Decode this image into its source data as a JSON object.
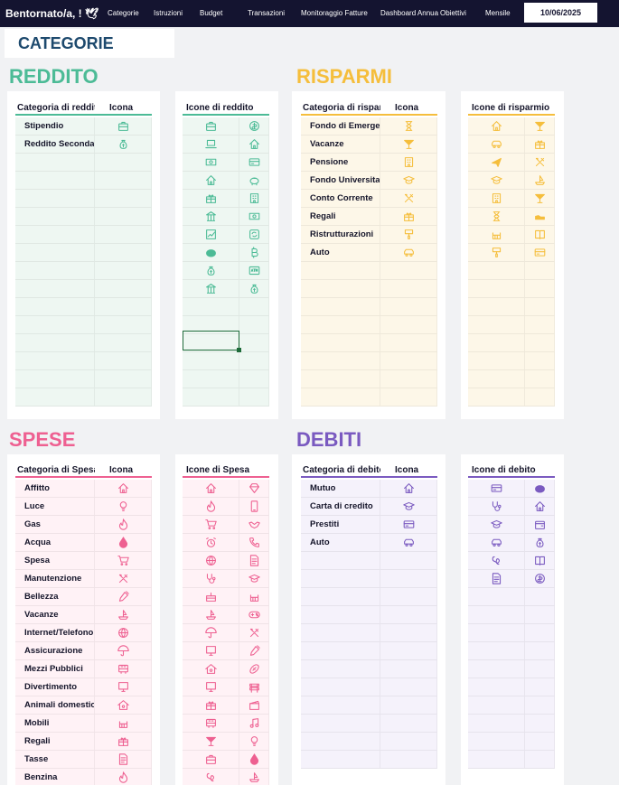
{
  "topbar": {
    "brand": "Bentornato/a, !",
    "nav": [
      "Categorie",
      "Istruzioni",
      "Budget",
      "Transazioni",
      "Monitoraggio Fatture",
      "Dashboard Annua",
      "Obiettivi",
      "Mensile"
    ],
    "date": "10/06/2025"
  },
  "page_title": "CATEGORIE",
  "colors": {
    "reddito": "#4cbb96",
    "risparmi": "#f5be3c",
    "spese": "#ee6091",
    "debiti": "#7a5ac0"
  },
  "reddito": {
    "title": "REDDITO",
    "cat_header": "Categoria di reddito",
    "icon_header": "Icona",
    "gallery_header": "Icone di reddito",
    "categories": [
      {
        "name": "Stipendio",
        "icon": "briefcase"
      },
      {
        "name": "Reddito Secondario",
        "icon": "money-bag"
      }
    ],
    "gallery": [
      [
        "briefcase",
        "coins"
      ],
      [
        "laptop",
        "house"
      ],
      [
        "cash",
        "card"
      ],
      [
        "house",
        "piggy"
      ],
      [
        "gift",
        "building"
      ],
      [
        "bank",
        "cash"
      ],
      [
        "chart",
        "refresh"
      ],
      [
        "hands",
        "bitcoin"
      ],
      [
        "money-bag",
        "atm"
      ],
      [
        "bank",
        "money-bag"
      ]
    ]
  },
  "risparmi": {
    "title": "RISPARMI",
    "cat_header": "Categoria di risparmio",
    "icon_header": "Icona",
    "gallery_header": "Icone di risparmio",
    "categories": [
      {
        "name": "Fondo di Emergenza",
        "icon": "hourglass"
      },
      {
        "name": "Vacanze",
        "icon": "cocktail"
      },
      {
        "name": "Pensione",
        "icon": "building"
      },
      {
        "name": "Fondo Universitario",
        "icon": "graduation"
      },
      {
        "name": "Conto Corrente",
        "icon": "tools"
      },
      {
        "name": "Regali",
        "icon": "gift"
      },
      {
        "name": "Ristrutturazioni",
        "icon": "paint"
      },
      {
        "name": "Auto",
        "icon": "car"
      }
    ],
    "gallery": [
      [
        "house",
        "cocktail"
      ],
      [
        "car",
        "gift"
      ],
      [
        "plane",
        "tools"
      ],
      [
        "graduation",
        "boat"
      ],
      [
        "building",
        "cocktail"
      ],
      [
        "hourglass",
        "shoe"
      ],
      [
        "crib",
        "book"
      ],
      [
        "paint",
        "card"
      ]
    ]
  },
  "spese": {
    "title": "SPESE",
    "cat_header": "Categoria di Spesa",
    "icon_header": "Icona",
    "gallery_header": "Icone di Spesa",
    "categories": [
      {
        "name": "Affitto",
        "icon": "house"
      },
      {
        "name": "Luce",
        "icon": "bulb"
      },
      {
        "name": "Gas",
        "icon": "flame"
      },
      {
        "name": "Acqua",
        "icon": "drop"
      },
      {
        "name": "Spesa",
        "icon": "cart"
      },
      {
        "name": "Manutenzione",
        "icon": "tools"
      },
      {
        "name": "Bellezza",
        "icon": "brush"
      },
      {
        "name": "Vacanze",
        "icon": "boat"
      },
      {
        "name": "Internet/Telefono",
        "icon": "globe"
      },
      {
        "name": "Assicurazione",
        "icon": "umbrella"
      },
      {
        "name": "Mezzi Pubblici",
        "icon": "bus"
      },
      {
        "name": "Divertimento",
        "icon": "monitor"
      },
      {
        "name": "Animali domestici",
        "icon": "pethouse"
      },
      {
        "name": "Mobili",
        "icon": "crib"
      },
      {
        "name": "Regali",
        "icon": "gift"
      },
      {
        "name": "Tasse",
        "icon": "document"
      },
      {
        "name": "Benzina",
        "icon": "flame"
      }
    ],
    "gallery": [
      [
        "house",
        "diamond"
      ],
      [
        "flame",
        "tablet"
      ],
      [
        "cart",
        "handshake"
      ],
      [
        "alarm",
        "phone"
      ],
      [
        "globe",
        "document"
      ],
      [
        "stethoscope",
        "graduation"
      ],
      [
        "cake",
        "crib"
      ],
      [
        "boat",
        "gamepad"
      ],
      [
        "umbrella",
        "tools"
      ],
      [
        "monitor",
        "brush"
      ],
      [
        "pethouse",
        "football"
      ],
      [
        "monitor",
        "barrier"
      ],
      [
        "gift",
        "clapper"
      ],
      [
        "bus",
        "music"
      ],
      [
        "cocktail",
        "bulb"
      ],
      [
        "briefcase",
        "drop"
      ],
      [
        "pretzel",
        "boat"
      ]
    ]
  },
  "debiti": {
    "title": "DEBITI",
    "cat_header": "Categoria di debito",
    "icon_header": "Icona",
    "gallery_header": "Icone di debito",
    "categories": [
      {
        "name": "Mutuo",
        "icon": "house"
      },
      {
        "name": "Carta di credito",
        "icon": "graduation"
      },
      {
        "name": "Prestiti",
        "icon": "card"
      },
      {
        "name": "Auto",
        "icon": "car"
      }
    ],
    "gallery": [
      [
        "card",
        "hands"
      ],
      [
        "stethoscope",
        "house"
      ],
      [
        "graduation",
        "wallet"
      ],
      [
        "car",
        "money-bag"
      ],
      [
        "pretzel",
        "book"
      ],
      [
        "document",
        "coins"
      ]
    ]
  }
}
